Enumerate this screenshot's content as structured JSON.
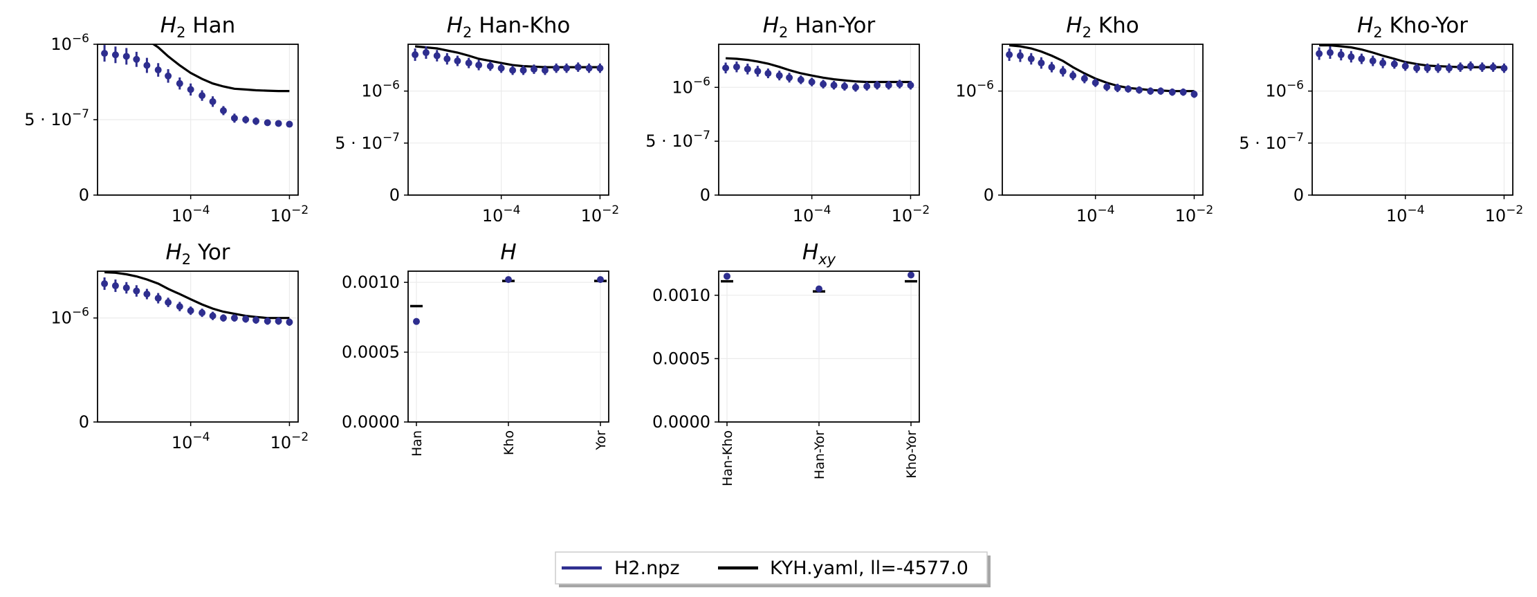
{
  "legend": {
    "entries": [
      {
        "label": "H2.npz",
        "color": "#2e2e8f"
      },
      {
        "label": "KYH.yaml, ll=-4577.0",
        "color": "#000000"
      }
    ],
    "placement": "bottom-center"
  },
  "chart_data": [
    {
      "type": "line",
      "title_main": "H",
      "title_sub": "2",
      "title_rest": " Han",
      "xscale": "log",
      "xlim": [
        1.3e-06,
        0.015
      ],
      "ylim": [
        0,
        1e-06
      ],
      "xticks": [
        {
          "v": 0.0001,
          "b": "10",
          "e": "−4"
        },
        {
          "v": 0.01,
          "b": "10",
          "e": "−2"
        }
      ],
      "yticks": [
        {
          "v": 0,
          "b": "0",
          "e": ""
        },
        {
          "v": 5e-07,
          "b": "5 · 10",
          "e": "−7"
        },
        {
          "v": 1e-06,
          "b": "10",
          "e": "−6"
        }
      ],
      "grid": true,
      "x": [
        1.8e-06,
        3e-06,
        5e-06,
        8e-06,
        1.3e-05,
        2.2e-05,
        3.5e-05,
        6e-05,
        0.0001,
        0.00017,
        0.00028,
        0.00046,
        0.00077,
        0.0013,
        0.0021,
        0.0036,
        0.006,
        0.01
      ],
      "data": [
        9.4e-07,
        9.3e-07,
        9.2e-07,
        9e-07,
        8.6e-07,
        8.3e-07,
        7.9e-07,
        7.4e-07,
        7e-07,
        6.6e-07,
        6.2e-07,
        5.6e-07,
        5.1e-07,
        5e-07,
        4.9e-07,
        4.8e-07,
        4.75e-07,
        4.7e-07
      ],
      "err": [
        5.5e-08,
        5.5e-08,
        5.5e-08,
        5e-08,
        5e-08,
        4.5e-08,
        4.5e-08,
        4e-08,
        4e-08,
        3.5e-08,
        3.5e-08,
        3e-08,
        3e-08,
        2.5e-08,
        2.5e-08,
        2e-08,
        2e-08,
        2e-08
      ],
      "model": [
        1.3e-06,
        1.22e-06,
        1.15e-06,
        1.08e-06,
        1.03e-06,
        9.8e-07,
        9.2e-07,
        8.6e-07,
        8.1e-07,
        7.7e-07,
        7.4e-07,
        7.2e-07,
        7.05e-07,
        7e-07,
        6.95e-07,
        6.92e-07,
        6.9e-07,
        6.9e-07
      ]
    },
    {
      "type": "line",
      "title_main": "H",
      "title_sub": "2",
      "title_rest": " Han-Kho",
      "xscale": "log",
      "xlim": [
        1.3e-06,
        0.015
      ],
      "ylim": [
        0,
        1.45e-06
      ],
      "xticks": [
        {
          "v": 0.0001,
          "b": "10",
          "e": "−4"
        },
        {
          "v": 0.01,
          "b": "10",
          "e": "−2"
        }
      ],
      "yticks": [
        {
          "v": 0,
          "b": "0",
          "e": ""
        },
        {
          "v": 5e-07,
          "b": "5 · 10",
          "e": "−7"
        },
        {
          "v": 1e-06,
          "b": "10",
          "e": "−6"
        }
      ],
      "grid": true,
      "x": [
        1.8e-06,
        3e-06,
        5e-06,
        8e-06,
        1.3e-05,
        2.2e-05,
        3.5e-05,
        6e-05,
        0.0001,
        0.00017,
        0.00028,
        0.00046,
        0.00077,
        0.0013,
        0.0021,
        0.0036,
        0.006,
        0.01
      ],
      "data": [
        1.35e-06,
        1.37e-06,
        1.34e-06,
        1.31e-06,
        1.29e-06,
        1.27e-06,
        1.25e-06,
        1.24e-06,
        1.22e-06,
        1.2e-06,
        1.2e-06,
        1.21e-06,
        1.2e-06,
        1.22e-06,
        1.22e-06,
        1.23e-06,
        1.22e-06,
        1.22e-06
      ],
      "err": [
        6e-08,
        6e-08,
        5.5e-08,
        5.5e-08,
        5e-08,
        5e-08,
        5e-08,
        4.5e-08,
        4.5e-08,
        4.5e-08,
        4.5e-08,
        4.5e-08,
        4.5e-08,
        4.5e-08,
        4.5e-08,
        4.5e-08,
        4.5e-08,
        4.5e-08
      ],
      "model": [
        1.43e-06,
        1.42e-06,
        1.41e-06,
        1.39e-06,
        1.37e-06,
        1.34e-06,
        1.31e-06,
        1.29e-06,
        1.27e-06,
        1.25e-06,
        1.24e-06,
        1.235e-06,
        1.23e-06,
        1.23e-06,
        1.23e-06,
        1.23e-06,
        1.23e-06,
        1.23e-06
      ]
    },
    {
      "type": "line",
      "title_main": "H",
      "title_sub": "2",
      "title_rest": " Han-Yor",
      "xscale": "log",
      "xlim": [
        1.3e-06,
        0.015
      ],
      "ylim": [
        0,
        1.4e-06
      ],
      "xticks": [
        {
          "v": 0.0001,
          "b": "10",
          "e": "−4"
        },
        {
          "v": 0.01,
          "b": "10",
          "e": "−2"
        }
      ],
      "yticks": [
        {
          "v": 0,
          "b": "0",
          "e": ""
        },
        {
          "v": 5e-07,
          "b": "5 · 10",
          "e": "−7"
        },
        {
          "v": 1e-06,
          "b": "10",
          "e": "−6"
        }
      ],
      "grid": true,
      "x": [
        1.8e-06,
        3e-06,
        5e-06,
        8e-06,
        1.3e-05,
        2.2e-05,
        3.5e-05,
        6e-05,
        0.0001,
        0.00017,
        0.00028,
        0.00046,
        0.00077,
        0.0013,
        0.0021,
        0.0036,
        0.006,
        0.01
      ],
      "data": [
        1.18e-06,
        1.19e-06,
        1.17e-06,
        1.15e-06,
        1.13e-06,
        1.11e-06,
        1.09e-06,
        1.07e-06,
        1.05e-06,
        1.03e-06,
        1.02e-06,
        1.01e-06,
        1e-06,
        1.01e-06,
        1.02e-06,
        1.02e-06,
        1.03e-06,
        1.02e-06
      ],
      "err": [
        5e-08,
        5e-08,
        5e-08,
        5e-08,
        4.5e-08,
        4.5e-08,
        4.5e-08,
        4e-08,
        4e-08,
        4e-08,
        4e-08,
        4e-08,
        4e-08,
        4e-08,
        4e-08,
        4e-08,
        4e-08,
        4e-08
      ],
      "model": [
        1.27e-06,
        1.265e-06,
        1.255e-06,
        1.24e-06,
        1.22e-06,
        1.19e-06,
        1.16e-06,
        1.13e-06,
        1.11e-06,
        1.09e-06,
        1.075e-06,
        1.065e-06,
        1.055e-06,
        1.05e-06,
        1.05e-06,
        1.05e-06,
        1.05e-06,
        1.05e-06
      ]
    },
    {
      "type": "line",
      "title_main": "H",
      "title_sub": "2",
      "title_rest": " Kho",
      "xscale": "log",
      "xlim": [
        1.3e-06,
        0.015
      ],
      "ylim": [
        0,
        1.45e-06
      ],
      "xticks": [
        {
          "v": 0.0001,
          "b": "10",
          "e": "−4"
        },
        {
          "v": 0.01,
          "b": "10",
          "e": "−2"
        }
      ],
      "yticks": [
        {
          "v": 0,
          "b": "0",
          "e": ""
        },
        {
          "v": 1e-06,
          "b": "10",
          "e": "−6"
        }
      ],
      "grid": true,
      "x": [
        1.8e-06,
        3e-06,
        5e-06,
        8e-06,
        1.3e-05,
        2.2e-05,
        3.5e-05,
        6e-05,
        0.0001,
        0.00017,
        0.00028,
        0.00046,
        0.00077,
        0.0013,
        0.0021,
        0.0036,
        0.006,
        0.01
      ],
      "data": [
        1.35e-06,
        1.34e-06,
        1.31e-06,
        1.27e-06,
        1.23e-06,
        1.19e-06,
        1.15e-06,
        1.12e-06,
        1.08e-06,
        1.04e-06,
        1.03e-06,
        1.02e-06,
        1.01e-06,
        1e-06,
        1e-06,
        9.9e-07,
        9.9e-07,
        9.7e-07
      ],
      "err": [
        6e-08,
        6e-08,
        5.5e-08,
        5.5e-08,
        5e-08,
        5e-08,
        4.5e-08,
        4.5e-08,
        4e-08,
        4e-08,
        4e-08,
        3.5e-08,
        3.5e-08,
        3.5e-08,
        3.5e-08,
        3.5e-08,
        3.5e-08,
        3.5e-08
      ],
      "model": [
        1.44e-06,
        1.43e-06,
        1.41e-06,
        1.38e-06,
        1.34e-06,
        1.29e-06,
        1.23e-06,
        1.17e-06,
        1.12e-06,
        1.08e-06,
        1.05e-06,
        1.03e-06,
        1.02e-06,
        1.01e-06,
        1.005e-06,
        1e-06,
        1e-06,
        1e-06
      ]
    },
    {
      "type": "line",
      "title_main": "H",
      "title_sub": "2",
      "title_rest": " Kho-Yor",
      "xscale": "log",
      "xlim": [
        1.3e-06,
        0.015
      ],
      "ylim": [
        0,
        1.45e-06
      ],
      "xticks": [
        {
          "v": 0.0001,
          "b": "10",
          "e": "−4"
        },
        {
          "v": 0.01,
          "b": "10",
          "e": "−2"
        }
      ],
      "yticks": [
        {
          "v": 0,
          "b": "0",
          "e": ""
        },
        {
          "v": 5e-07,
          "b": "5 · 10",
          "e": "−7"
        },
        {
          "v": 1e-06,
          "b": "10",
          "e": "−6"
        }
      ],
      "grid": true,
      "x": [
        1.8e-06,
        3e-06,
        5e-06,
        8e-06,
        1.3e-05,
        2.2e-05,
        3.5e-05,
        6e-05,
        0.0001,
        0.00017,
        0.00028,
        0.00046,
        0.00077,
        0.0013,
        0.0021,
        0.0036,
        0.006,
        0.01
      ],
      "data": [
        1.36e-06,
        1.37e-06,
        1.35e-06,
        1.33e-06,
        1.31e-06,
        1.29e-06,
        1.27e-06,
        1.26e-06,
        1.24e-06,
        1.22e-06,
        1.22e-06,
        1.22e-06,
        1.22e-06,
        1.23e-06,
        1.24e-06,
        1.23e-06,
        1.23e-06,
        1.22e-06
      ],
      "err": [
        6e-08,
        6e-08,
        5.5e-08,
        5.5e-08,
        5e-08,
        5e-08,
        5e-08,
        4.5e-08,
        4.5e-08,
        4.5e-08,
        4.5e-08,
        4.5e-08,
        4.5e-08,
        4.5e-08,
        4.5e-08,
        4.5e-08,
        4.5e-08,
        4.5e-08
      ],
      "model": [
        1.44e-06,
        1.44e-06,
        1.43e-06,
        1.42e-06,
        1.4e-06,
        1.37e-06,
        1.34e-06,
        1.31e-06,
        1.28e-06,
        1.26e-06,
        1.245e-06,
        1.24e-06,
        1.235e-06,
        1.23e-06,
        1.23e-06,
        1.23e-06,
        1.23e-06,
        1.23e-06
      ]
    },
    {
      "type": "line",
      "title_main": "H",
      "title_sub": "2",
      "title_rest": " Yor",
      "xscale": "log",
      "xlim": [
        1.3e-06,
        0.015
      ],
      "ylim": [
        0,
        1.45e-06
      ],
      "xticks": [
        {
          "v": 0.0001,
          "b": "10",
          "e": "−4"
        },
        {
          "v": 0.01,
          "b": "10",
          "e": "−2"
        }
      ],
      "yticks": [
        {
          "v": 0,
          "b": "0",
          "e": ""
        },
        {
          "v": 1e-06,
          "b": "10",
          "e": "−6"
        }
      ],
      "grid": true,
      "x": [
        1.8e-06,
        3e-06,
        5e-06,
        8e-06,
        1.3e-05,
        2.2e-05,
        3.5e-05,
        6e-05,
        0.0001,
        0.00017,
        0.00028,
        0.00046,
        0.00077,
        0.0013,
        0.0021,
        0.0036,
        0.006,
        0.01
      ],
      "data": [
        1.33e-06,
        1.31e-06,
        1.29e-06,
        1.26e-06,
        1.23e-06,
        1.19e-06,
        1.15e-06,
        1.11e-06,
        1.07e-06,
        1.05e-06,
        1.02e-06,
        1e-06,
        1e-06,
        9.9e-07,
        9.8e-07,
        9.7e-07,
        9.7e-07,
        9.6e-07
      ],
      "err": [
        6e-08,
        6e-08,
        5.5e-08,
        5.5e-08,
        5e-08,
        5e-08,
        4.5e-08,
        4.5e-08,
        4e-08,
        4e-08,
        4e-08,
        3.5e-08,
        3.5e-08,
        3.5e-08,
        3.5e-08,
        3.5e-08,
        3.5e-08,
        3.5e-08
      ],
      "model": [
        1.44e-06,
        1.435e-06,
        1.42e-06,
        1.4e-06,
        1.37e-06,
        1.33e-06,
        1.28e-06,
        1.23e-06,
        1.18e-06,
        1.13e-06,
        1.09e-06,
        1.06e-06,
        1.04e-06,
        1.02e-06,
        1.01e-06,
        1e-06,
        1e-06,
        1e-06
      ]
    },
    {
      "type": "scatter",
      "title_main": "H",
      "title_sub": "",
      "categories": [
        "Han",
        "Kho",
        "Yor"
      ],
      "ylim": [
        0,
        0.00108
      ],
      "yticks": [
        {
          "v": 0,
          "b": "0.0000",
          "e": ""
        },
        {
          "v": 0.0005,
          "b": "0.0005",
          "e": ""
        },
        {
          "v": 0.001,
          "b": "0.0010",
          "e": ""
        }
      ],
      "grid": true,
      "data": [
        0.00072,
        0.00102,
        0.00102
      ],
      "model": [
        0.00083,
        0.00101,
        0.00101
      ]
    },
    {
      "type": "scatter",
      "title_main": "H",
      "title_sub": "xy",
      "categories": [
        "Han-Kho",
        "Han-Yor",
        "Kho-Yor"
      ],
      "ylim": [
        0,
        0.00119
      ],
      "yticks": [
        {
          "v": 0,
          "b": "0.0000",
          "e": ""
        },
        {
          "v": 0.0005,
          "b": "0.0005",
          "e": ""
        },
        {
          "v": 0.001,
          "b": "0.0010",
          "e": ""
        }
      ],
      "grid": true,
      "data": [
        0.00115,
        0.00105,
        0.00116
      ],
      "model": [
        0.00111,
        0.00103,
        0.00111
      ]
    }
  ]
}
